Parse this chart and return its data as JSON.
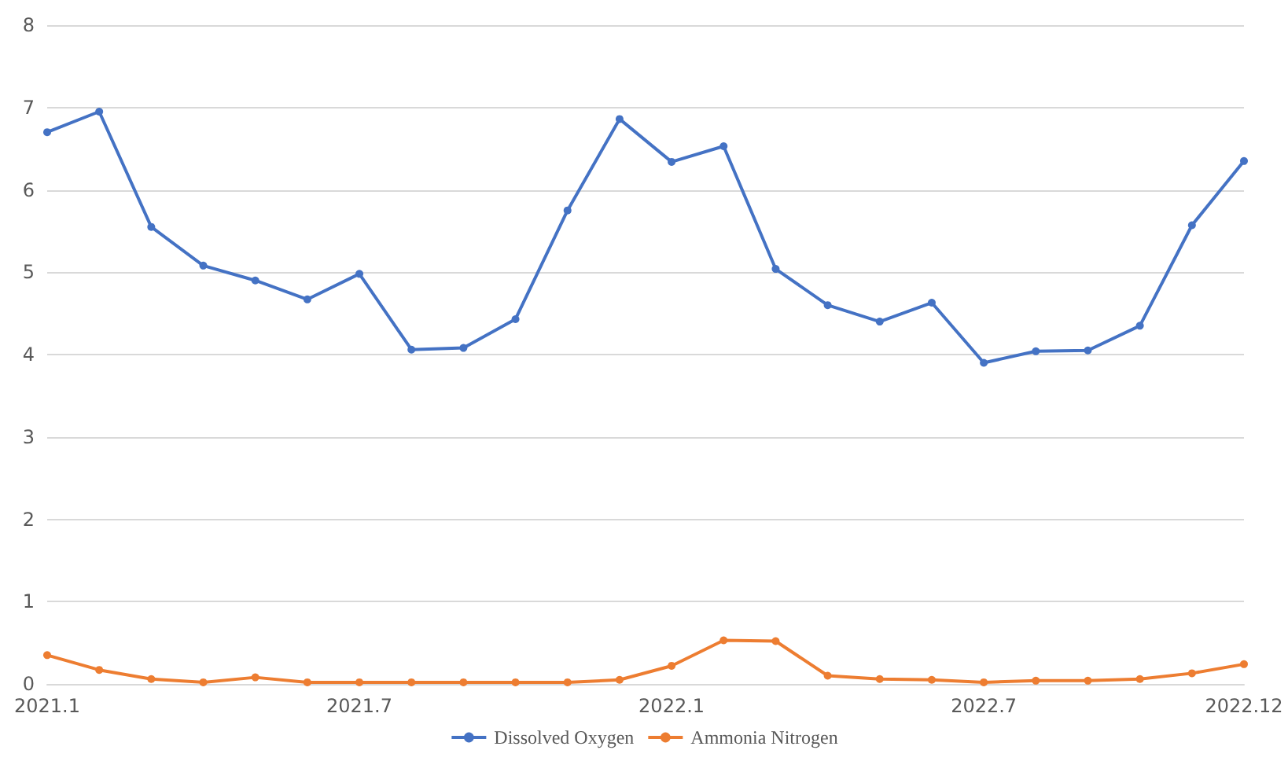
{
  "chart_data": {
    "type": "line",
    "categories": [
      "2021.1",
      null,
      null,
      null,
      null,
      null,
      "2021.7",
      null,
      null,
      null,
      null,
      null,
      "2022.1",
      null,
      null,
      null,
      null,
      null,
      "2022.7",
      null,
      null,
      null,
      null,
      "2022.12"
    ],
    "series": [
      {
        "name": "Dissolved Oxygen",
        "color": "#4472c4",
        "values": [
          6.7,
          6.95,
          5.55,
          5.08,
          4.9,
          4.67,
          4.98,
          4.06,
          4.08,
          4.43,
          5.75,
          6.86,
          6.34,
          6.53,
          5.04,
          4.6,
          4.4,
          4.63,
          3.9,
          4.04,
          4.05,
          4.35,
          5.57,
          6.35
        ]
      },
      {
        "name": "Ammonia Nitrogen",
        "color": "#ed7d31",
        "values": [
          0.35,
          0.17,
          0.06,
          0.02,
          0.08,
          0.02,
          0.02,
          0.02,
          0.02,
          0.02,
          0.02,
          0.05,
          0.22,
          0.53,
          0.52,
          0.1,
          0.06,
          0.05,
          0.02,
          0.04,
          0.04,
          0.06,
          0.13,
          0.24
        ]
      }
    ],
    "ylim": [
      0,
      8
    ],
    "yticks": [
      0,
      1,
      2,
      3,
      4,
      5,
      6,
      7,
      8
    ],
    "grid": "y",
    "legend": "bottom",
    "marker": "circle",
    "line_style": "solid"
  }
}
